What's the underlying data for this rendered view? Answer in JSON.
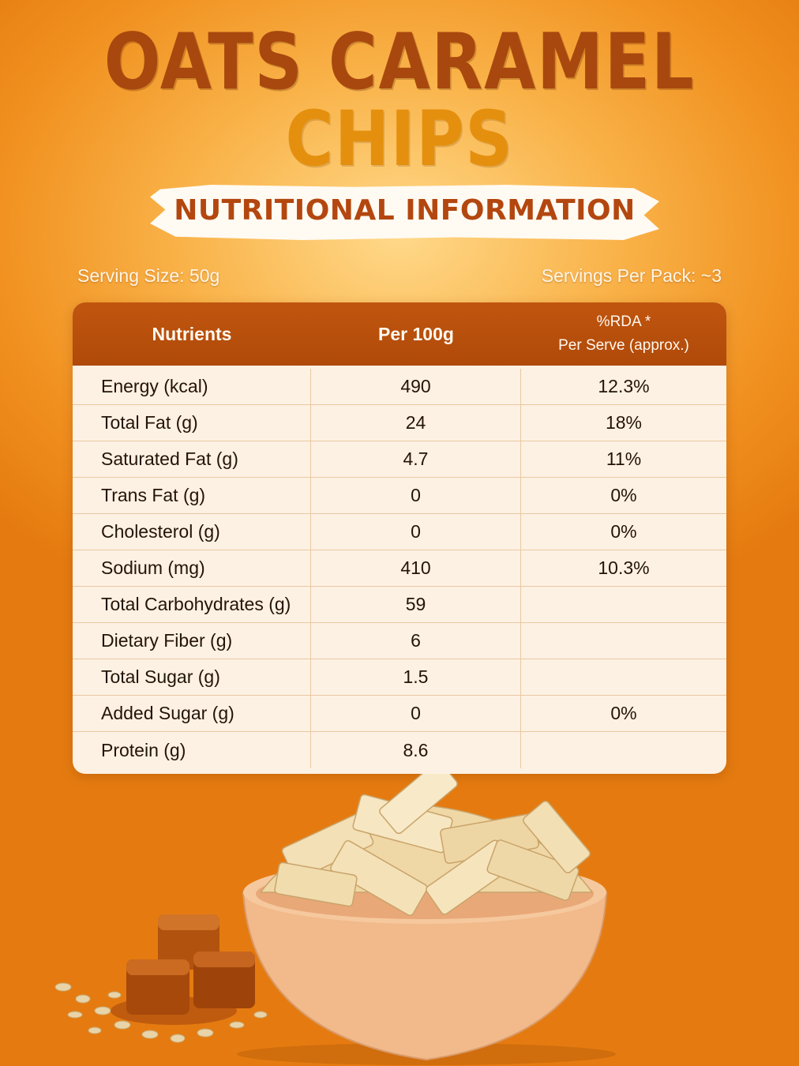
{
  "title": {
    "line1": "OATS CARAMEL",
    "line2": "CHIPS"
  },
  "banner": "NUTRITIONAL INFORMATION",
  "serving_size": "Serving Size: 50g",
  "servings_per_pack": "Servings Per Pack: ~3",
  "table": {
    "headers": {
      "nutrients": "Nutrients",
      "per100g": "Per 100g",
      "rda_line1": "%RDA *",
      "rda_line2": "Per Serve (approx.)"
    },
    "rows": [
      {
        "nutrient": "Energy (kcal)",
        "per100g": "490",
        "rda": "12.3%"
      },
      {
        "nutrient": "Total Fat (g)",
        "per100g": "24",
        "rda": "18%"
      },
      {
        "nutrient": "Saturated Fat (g)",
        "per100g": "4.7",
        "rda": "11%"
      },
      {
        "nutrient": "Trans Fat (g)",
        "per100g": "0",
        "rda": "0%"
      },
      {
        "nutrient": "Cholesterol (g)",
        "per100g": "0",
        "rda": "0%"
      },
      {
        "nutrient": "Sodium (mg)",
        "per100g": "410",
        "rda": "10.3%"
      },
      {
        "nutrient": "Total Carbohydrates (g)",
        "per100g": "59",
        "rda": ""
      },
      {
        "nutrient": "Dietary Fiber (g)",
        "per100g": "6",
        "rda": ""
      },
      {
        "nutrient": "Total Sugar (g)",
        "per100g": "1.5",
        "rda": ""
      },
      {
        "nutrient": "Added Sugar (g)",
        "per100g": "0",
        "rda": "0%"
      },
      {
        "nutrient": "Protein (g)",
        "per100g": "8.6",
        "rda": ""
      }
    ]
  },
  "colors": {
    "title_dark": "#a8480e",
    "title_light": "#e4900e",
    "header_bg": "#b04a0a",
    "table_bg": "#fdf1e3"
  }
}
